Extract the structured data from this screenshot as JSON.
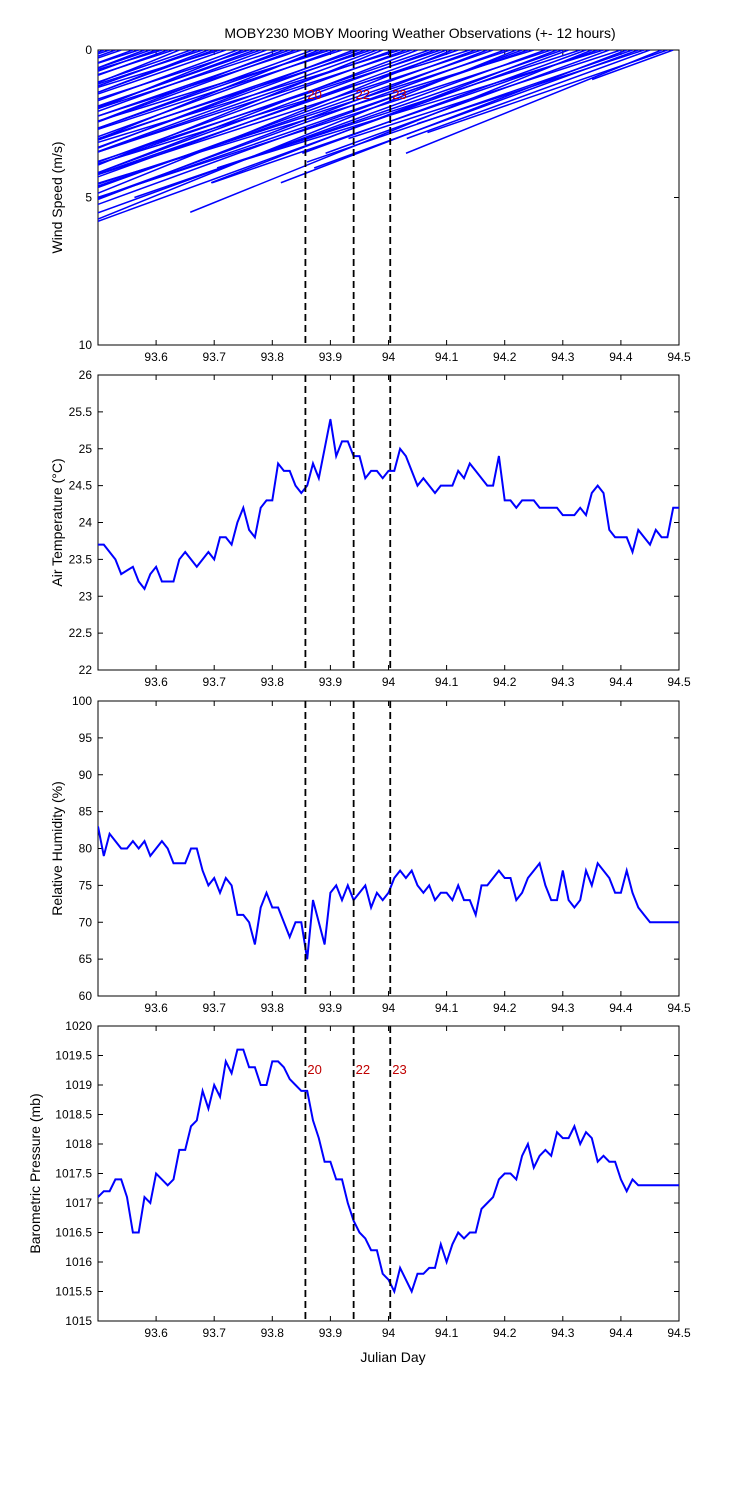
{
  "figure": {
    "title": "MOBY230 MOBY Mooring Weather Observations (+- 12 hours)",
    "xlabel": "Julian Day"
  },
  "colors": {
    "series": "#0000ff",
    "marker_line": "#000000",
    "marker_label": "#c00000"
  },
  "event_markers": [
    {
      "x": 93.857,
      "label": "20"
    },
    {
      "x": 93.94,
      "label": "22"
    },
    {
      "x": 94.003,
      "label": "23"
    }
  ],
  "chart_data": [
    {
      "type": "line",
      "variant": "wind-sticks",
      "ylabel": "Wind Speed (m/s)",
      "ylim": [
        10,
        0
      ],
      "y_reversed": true,
      "xlim": [
        93.5,
        94.5
      ],
      "xticks": [
        93.6,
        93.7,
        93.8,
        93.9,
        94,
        94.1,
        94.2,
        94.3,
        94.4,
        94.5
      ],
      "yticks": [
        0,
        5,
        10
      ],
      "marker_labels_shown": true,
      "series": [
        {
          "x": [
            93.5,
            93.51,
            93.52,
            93.53,
            93.54,
            93.56,
            93.57,
            93.58,
            93.59,
            93.6,
            93.61,
            93.62,
            93.63,
            93.64,
            93.66,
            93.67,
            93.68,
            93.69,
            93.7,
            93.71,
            93.72,
            93.74,
            93.75,
            93.76,
            93.77,
            93.78,
            93.79,
            93.81,
            93.82,
            93.83,
            93.84,
            93.85,
            93.87,
            93.88,
            93.89,
            93.9,
            93.91,
            93.92,
            93.94,
            93.95,
            93.96,
            93.97,
            93.98,
            93.99,
            94.01,
            94.02,
            94.03,
            94.04,
            94.05,
            94.07,
            94.08,
            94.09,
            94.1,
            94.11,
            94.12,
            94.14,
            94.15,
            94.16,
            94.17,
            94.18,
            94.2,
            94.21,
            94.22,
            94.23,
            94.24,
            94.25,
            94.27,
            94.28,
            94.29,
            94.3,
            94.31,
            94.33,
            94.34,
            94.35,
            94.36,
            94.37,
            94.38,
            94.4,
            94.41,
            94.42,
            94.43,
            94.44,
            94.45,
            94.47,
            94.48,
            94.49
          ],
          "speed": [
            8.0,
            7.0,
            6.5,
            8.5,
            6.0,
            5.5,
            8.8,
            5.0,
            8.2,
            8.5,
            7.5,
            6.0,
            6.8,
            7.5,
            8.2,
            7.7,
            8.8,
            7.0,
            6.5,
            7.5,
            6.8,
            6.5,
            6.5,
            7.0,
            5.5,
            6.0,
            7.8,
            7.2,
            6.5,
            7.5,
            8.5,
            7.0,
            6.0,
            7.0,
            6.2,
            7.5,
            8.0,
            7.0,
            7.8,
            6.0,
            8.2,
            7.2,
            6.5,
            8.7,
            8.0,
            7.0,
            8.5,
            7.5,
            8.0,
            7.5,
            6.8,
            7.8,
            6.5,
            7.5,
            7.0,
            8.7,
            6.5,
            7.8,
            7.5,
            6.5,
            6.8,
            7.2,
            8.2,
            6.0,
            7.8,
            5.5,
            6.5,
            7.0,
            4.5,
            5.0,
            6.0,
            4.0,
            3.5,
            5.5,
            4.5,
            4.0,
            3.5,
            3.0,
            4.5,
            3.8,
            4.0,
            2.5,
            3.0,
            3.5,
            2.8,
            1.0
          ],
          "direction_deg": [
            160,
            158,
            162,
            160,
            161,
            160,
            162,
            159,
            161,
            160,
            163,
            160,
            162,
            158,
            161,
            160,
            162,
            159,
            160,
            163,
            161,
            160,
            158,
            162,
            160,
            161,
            160,
            162,
            159,
            161,
            160,
            162,
            160,
            158,
            161,
            163,
            160,
            162,
            159,
            161,
            160,
            162,
            160,
            158,
            161,
            163,
            160,
            162,
            159,
            161,
            160,
            162,
            160,
            158,
            161,
            163,
            160,
            162,
            159,
            161,
            160,
            162,
            158,
            160,
            161,
            163,
            160,
            162,
            159,
            161,
            160,
            162,
            160,
            158,
            161,
            163,
            160,
            162,
            159,
            161,
            160,
            162,
            160,
            158,
            161,
            160
          ]
        }
      ]
    },
    {
      "type": "line",
      "ylabel": "Air Temperature (°C)",
      "ylim": [
        22,
        26
      ],
      "xlim": [
        93.5,
        94.5
      ],
      "xticks": [
        93.6,
        93.7,
        93.8,
        93.9,
        94,
        94.1,
        94.2,
        94.3,
        94.4,
        94.5
      ],
      "yticks": [
        22,
        22.5,
        23,
        23.5,
        24,
        24.5,
        25,
        25.5,
        26
      ],
      "series": [
        {
          "x": [
            93.5,
            93.51,
            93.53,
            93.54,
            93.56,
            93.57,
            93.58,
            93.59,
            93.6,
            93.61,
            93.63,
            93.64,
            93.65,
            93.67,
            93.68,
            93.69,
            93.7,
            93.71,
            93.72,
            93.73,
            93.74,
            93.75,
            93.76,
            93.77,
            93.78,
            93.79,
            93.8,
            93.81,
            93.82,
            93.83,
            93.84,
            93.85,
            93.86,
            93.87,
            93.88,
            93.89,
            93.9,
            93.91,
            93.92,
            93.93,
            93.94,
            93.95,
            93.96,
            93.97,
            93.98,
            93.99,
            94.0,
            94.01,
            94.02,
            94.03,
            94.04,
            94.05,
            94.06,
            94.07,
            94.08,
            94.09,
            94.1,
            94.11,
            94.12,
            94.13,
            94.14,
            94.15,
            94.16,
            94.17,
            94.18,
            94.19,
            94.2,
            94.21,
            94.22,
            94.23,
            94.24,
            94.25,
            94.26,
            94.27,
            94.28,
            94.29,
            94.3,
            94.31,
            94.32,
            94.33,
            94.34,
            94.35,
            94.36,
            94.37,
            94.38,
            94.39,
            94.4,
            94.41,
            94.42,
            94.43,
            94.44,
            94.45,
            94.46,
            94.47,
            94.48,
            94.49,
            94.5
          ],
          "values": [
            23.7,
            23.7,
            23.5,
            23.3,
            23.4,
            23.2,
            23.1,
            23.3,
            23.4,
            23.2,
            23.2,
            23.5,
            23.6,
            23.4,
            23.5,
            23.6,
            23.5,
            23.8,
            23.8,
            23.7,
            24.0,
            24.2,
            23.9,
            23.8,
            24.2,
            24.3,
            24.3,
            24.8,
            24.7,
            24.7,
            24.5,
            24.4,
            24.5,
            24.8,
            24.6,
            25.0,
            25.4,
            24.9,
            25.1,
            25.1,
            24.9,
            24.9,
            24.6,
            24.7,
            24.7,
            24.6,
            24.7,
            24.7,
            25.0,
            24.9,
            24.7,
            24.5,
            24.6,
            24.5,
            24.4,
            24.5,
            24.5,
            24.5,
            24.7,
            24.6,
            24.8,
            24.7,
            24.6,
            24.5,
            24.5,
            24.9,
            24.3,
            24.3,
            24.2,
            24.3,
            24.3,
            24.3,
            24.2,
            24.2,
            24.2,
            24.2,
            24.1,
            24.1,
            24.1,
            24.2,
            24.1,
            24.4,
            24.5,
            24.4,
            23.9,
            23.8,
            23.8,
            23.8,
            23.6,
            23.9,
            23.8,
            23.7,
            23.9,
            23.8,
            23.8,
            24.2,
            24.2
          ]
        }
      ]
    },
    {
      "type": "line",
      "ylabel": "Relative Humidity (%)",
      "ylim": [
        60,
        100
      ],
      "xlim": [
        93.5,
        94.5
      ],
      "xticks": [
        93.6,
        93.7,
        93.8,
        93.9,
        94,
        94.1,
        94.2,
        94.3,
        94.4,
        94.5
      ],
      "yticks": [
        60,
        65,
        70,
        75,
        80,
        85,
        90,
        95,
        100
      ],
      "series": [
        {
          "x": [
            93.5,
            93.51,
            93.52,
            93.53,
            93.54,
            93.55,
            93.56,
            93.57,
            93.58,
            93.59,
            93.6,
            93.61,
            93.62,
            93.63,
            93.64,
            93.65,
            93.66,
            93.67,
            93.68,
            93.69,
            93.7,
            93.71,
            93.72,
            93.73,
            93.74,
            93.75,
            93.76,
            93.77,
            93.78,
            93.79,
            93.8,
            93.81,
            93.82,
            93.83,
            93.84,
            93.85,
            93.86,
            93.87,
            93.88,
            93.89,
            93.9,
            93.91,
            93.92,
            93.93,
            93.94,
            93.95,
            93.96,
            93.97,
            93.98,
            93.99,
            94.0,
            94.01,
            94.02,
            94.03,
            94.04,
            94.05,
            94.06,
            94.07,
            94.08,
            94.09,
            94.1,
            94.11,
            94.12,
            94.13,
            94.14,
            94.15,
            94.16,
            94.17,
            94.18,
            94.19,
            94.2,
            94.21,
            94.22,
            94.23,
            94.24,
            94.25,
            94.26,
            94.27,
            94.28,
            94.29,
            94.3,
            94.31,
            94.32,
            94.33,
            94.34,
            94.35,
            94.36,
            94.37,
            94.38,
            94.39,
            94.4,
            94.41,
            94.42,
            94.43,
            94.44,
            94.45,
            94.46,
            94.47,
            94.48,
            94.49,
            94.5
          ],
          "values": [
            83,
            79,
            82,
            81,
            80,
            80,
            81,
            80,
            81,
            79,
            80,
            81,
            80,
            78,
            78,
            78,
            80,
            80,
            77,
            75,
            76,
            74,
            76,
            75,
            71,
            71,
            70,
            67,
            72,
            74,
            72,
            72,
            70,
            68,
            70,
            70,
            65,
            73,
            70,
            67,
            74,
            75,
            73,
            75,
            73,
            74,
            75,
            72,
            74,
            73,
            74,
            76,
            77,
            76,
            77,
            75,
            74,
            75,
            73,
            74,
            74,
            73,
            75,
            73,
            73,
            71,
            75,
            75,
            76,
            77,
            76,
            76,
            73,
            74,
            76,
            77,
            78,
            75,
            73,
            73,
            77,
            73,
            72,
            73,
            77,
            75,
            78,
            77,
            76,
            74,
            74,
            77,
            74,
            72,
            71,
            70,
            70,
            70,
            70,
            70,
            70
          ]
        }
      ]
    },
    {
      "type": "line",
      "ylabel": "Barometric Pressure (mb)",
      "xlabel": "Julian Day",
      "ylim": [
        1015,
        1020
      ],
      "xlim": [
        93.5,
        94.5
      ],
      "xticks": [
        93.6,
        93.7,
        93.8,
        93.9,
        94,
        94.1,
        94.2,
        94.3,
        94.4,
        94.5
      ],
      "yticks": [
        1015,
        1015.5,
        1016,
        1016.5,
        1017,
        1017.5,
        1018,
        1018.5,
        1019,
        1019.5,
        1020
      ],
      "marker_labels_shown": true,
      "series": [
        {
          "x": [
            93.5,
            93.51,
            93.52,
            93.53,
            93.54,
            93.55,
            93.56,
            93.57,
            93.58,
            93.59,
            93.6,
            93.61,
            93.62,
            93.63,
            93.64,
            93.65,
            93.66,
            93.67,
            93.68,
            93.69,
            93.7,
            93.71,
            93.72,
            93.73,
            93.74,
            93.75,
            93.76,
            93.77,
            93.78,
            93.79,
            93.8,
            93.81,
            93.82,
            93.83,
            93.84,
            93.85,
            93.86,
            93.87,
            93.88,
            93.89,
            93.9,
            93.91,
            93.92,
            93.93,
            93.94,
            93.95,
            93.96,
            93.97,
            93.98,
            93.99,
            94.0,
            94.01,
            94.02,
            94.03,
            94.04,
            94.05,
            94.06,
            94.07,
            94.08,
            94.09,
            94.1,
            94.11,
            94.12,
            94.13,
            94.14,
            94.15,
            94.16,
            94.17,
            94.18,
            94.19,
            94.2,
            94.21,
            94.22,
            94.23,
            94.24,
            94.25,
            94.26,
            94.27,
            94.28,
            94.29,
            94.3,
            94.31,
            94.32,
            94.33,
            94.34,
            94.35,
            94.36,
            94.37,
            94.38,
            94.39,
            94.4,
            94.41,
            94.42,
            94.43,
            94.44,
            94.45,
            94.46,
            94.47,
            94.48,
            94.49,
            94.5
          ],
          "values": [
            1017.1,
            1017.2,
            1017.2,
            1017.4,
            1017.4,
            1017.1,
            1016.5,
            1016.5,
            1017.1,
            1017.0,
            1017.5,
            1017.4,
            1017.3,
            1017.4,
            1017.9,
            1017.9,
            1018.3,
            1018.4,
            1018.9,
            1018.6,
            1019.0,
            1018.8,
            1019.4,
            1019.2,
            1019.6,
            1019.6,
            1019.3,
            1019.3,
            1019.0,
            1019.0,
            1019.4,
            1019.4,
            1019.3,
            1019.1,
            1019.0,
            1018.9,
            1018.9,
            1018.4,
            1018.1,
            1017.7,
            1017.7,
            1017.4,
            1017.4,
            1017.0,
            1016.7,
            1016.5,
            1016.4,
            1016.2,
            1016.2,
            1015.8,
            1015.7,
            1015.5,
            1015.9,
            1015.7,
            1015.5,
            1015.8,
            1015.8,
            1015.9,
            1015.9,
            1016.3,
            1016.0,
            1016.3,
            1016.5,
            1016.4,
            1016.5,
            1016.5,
            1016.9,
            1017.0,
            1017.1,
            1017.4,
            1017.5,
            1017.5,
            1017.4,
            1017.8,
            1018.0,
            1017.6,
            1017.8,
            1017.9,
            1017.8,
            1018.2,
            1018.1,
            1018.1,
            1018.3,
            1018.0,
            1018.2,
            1018.1,
            1017.7,
            1017.8,
            1017.7,
            1017.7,
            1017.4,
            1017.2,
            1017.4,
            1017.3,
            1017.3,
            1017.3,
            1017.3,
            1017.3,
            1017.3,
            1017.3,
            1017.3
          ]
        }
      ]
    }
  ]
}
